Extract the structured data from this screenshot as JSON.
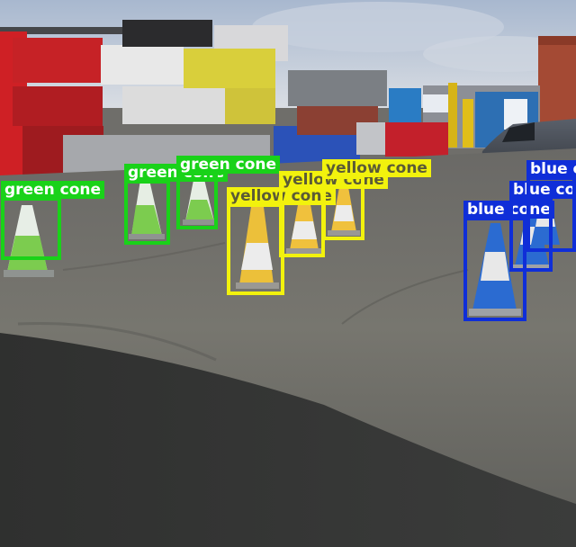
{
  "colors": {
    "green": "#19d219",
    "yellow": "#f2f20d",
    "blue": "#0f2ed8"
  },
  "detections": [
    {
      "label": "green cone",
      "cls": "green"
    },
    {
      "label": "green cone",
      "cls": "green"
    },
    {
      "label": "green cone",
      "cls": "green"
    },
    {
      "label": "yellow cone",
      "cls": "yellow"
    },
    {
      "label": "yellow cone",
      "cls": "yellow"
    },
    {
      "label": "yellow cone",
      "cls": "yellow"
    },
    {
      "label": "blue cone",
      "cls": "blue"
    },
    {
      "label": "blue cone",
      "cls": "blue"
    },
    {
      "label": "blue cone",
      "cls": "blue"
    }
  ]
}
